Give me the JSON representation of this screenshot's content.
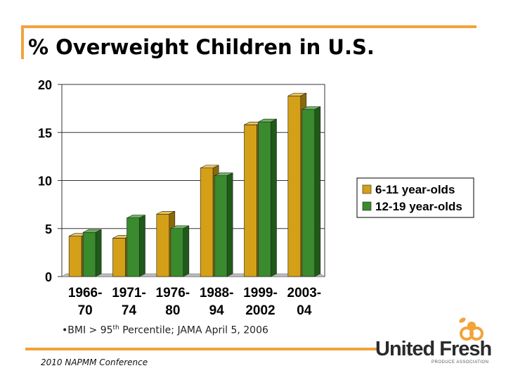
{
  "slide": {
    "title": "% Overweight Children in U.S.",
    "footnote_prefix": "•BMI > 95",
    "footnote_sup": "th",
    "footnote_suffix": " Percentile; JAMA April 5, 2006",
    "conference": "2010 NAPMM Conference"
  },
  "logo": {
    "text": "United Fresh",
    "subtext": "PRODUCE ASSOCIATION"
  },
  "colors": {
    "accent": "#f2a33a",
    "series1": "#d4a017",
    "series2": "#3a8a2e"
  },
  "chart_data": {
    "type": "bar",
    "categories": [
      [
        "1966-",
        "70"
      ],
      [
        "1971-",
        "74"
      ],
      [
        "1976-",
        "80"
      ],
      [
        "1988-",
        "94"
      ],
      [
        "1999-",
        "2002"
      ],
      [
        "2003-",
        "04"
      ]
    ],
    "series": [
      {
        "name": "6-11 year-olds",
        "values": [
          4.2,
          4.0,
          6.5,
          11.3,
          15.8,
          18.8
        ]
      },
      {
        "name": "12-19 year-olds",
        "values": [
          4.6,
          6.1,
          5.0,
          10.5,
          16.1,
          17.4
        ]
      }
    ],
    "ylim": [
      0,
      20
    ],
    "yticks": [
      "0",
      "5",
      "10",
      "15",
      "20"
    ],
    "legend_position": "right",
    "grid": true
  }
}
